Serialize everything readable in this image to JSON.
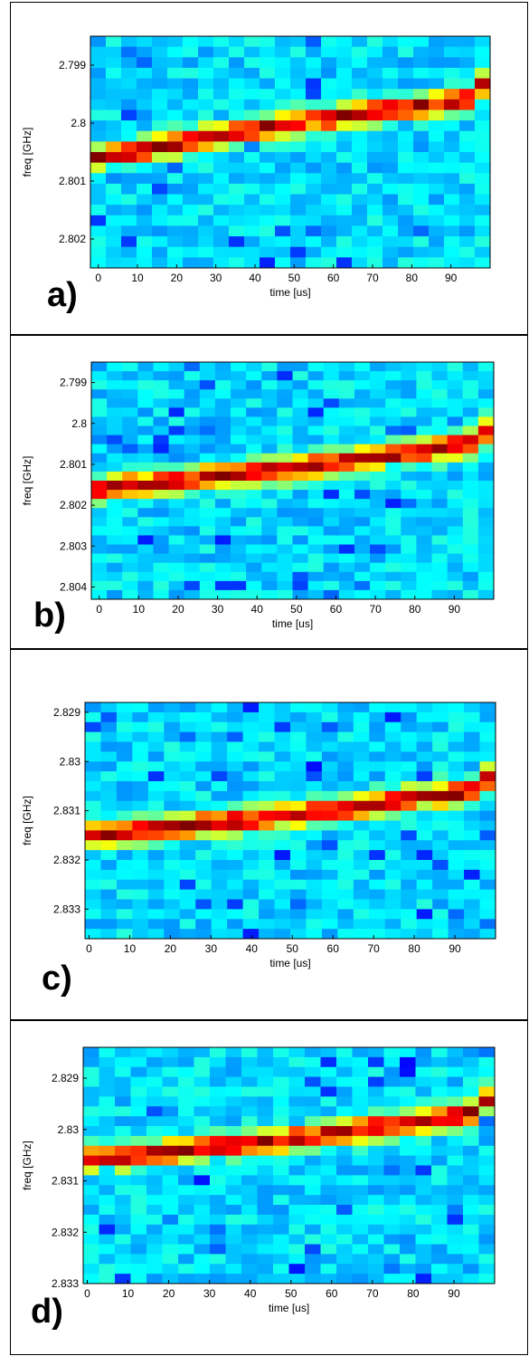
{
  "chart_data": [
    {
      "type": "heatmap",
      "panel_label": "a)",
      "xlabel": "time [us]",
      "ylabel": "freq [GHz]",
      "xlim": [
        -2,
        100
      ],
      "ylim": [
        2.8025,
        2.7985
      ],
      "x_ticks": [
        0,
        10,
        20,
        30,
        40,
        50,
        60,
        70,
        80,
        90
      ],
      "x_tick_labels": [
        "0",
        "10",
        "20",
        "30",
        "40",
        "50",
        "60",
        "70",
        "80",
        "90"
      ],
      "y_ticks": [
        2.799,
        2.8,
        2.801,
        2.802
      ],
      "y_tick_labels": [
        "2.799",
        "2.8",
        "2.801",
        "2.802"
      ],
      "grid": false,
      "resonance_freq": {
        "time_us": [
          0,
          50,
          94,
          100
        ],
        "freq_ghz": [
          2.8006,
          2.8,
          2.7996,
          2.7992
        ]
      }
    },
    {
      "type": "heatmap",
      "panel_label": "b)",
      "xlabel": "time [us]",
      "ylabel": "freq [GHz]",
      "xlim": [
        -2,
        100
      ],
      "ylim": [
        2.8043,
        2.7985
      ],
      "x_ticks": [
        0,
        10,
        20,
        30,
        40,
        50,
        60,
        70,
        80,
        90
      ],
      "x_tick_labels": [
        "0",
        "10",
        "20",
        "30",
        "40",
        "50",
        "60",
        "70",
        "80",
        "90"
      ],
      "y_ticks": [
        2.799,
        2.8,
        2.801,
        2.802,
        2.803,
        2.804
      ],
      "y_tick_labels": [
        "2.799",
        "2.8",
        "2.801",
        "2.802",
        "2.803",
        "2.804"
      ],
      "grid": false,
      "resonance_freq": {
        "time_us": [
          0,
          50,
          94,
          100
        ],
        "freq_ghz": [
          2.8016,
          2.8011,
          2.8005,
          2.8001
        ]
      }
    },
    {
      "type": "heatmap",
      "panel_label": "c)",
      "xlabel": "time [us]",
      "ylabel": "freq [GHz]",
      "xlim": [
        -1,
        100
      ],
      "ylim": [
        2.8336,
        2.8288
      ],
      "x_ticks": [
        0,
        10,
        20,
        30,
        40,
        50,
        60,
        70,
        80,
        90
      ],
      "x_tick_labels": [
        "0",
        "10",
        "20",
        "30",
        "40",
        "50",
        "60",
        "70",
        "80",
        "90"
      ],
      "y_ticks": [
        2.829,
        2.83,
        2.831,
        2.832,
        2.833
      ],
      "y_tick_labels": [
        "2.829",
        "2.83",
        "2.831",
        "2.832",
        "2.833"
      ],
      "grid": false,
      "resonance_freq": {
        "time_us": [
          0,
          50,
          94,
          100
        ],
        "freq_ghz": [
          2.8315,
          2.8311,
          2.8306,
          2.8302
        ]
      }
    },
    {
      "type": "heatmap",
      "panel_label": "d)",
      "xlabel": "time [us]",
      "ylabel": "freq [GHz]",
      "xlim": [
        -1,
        100
      ],
      "ylim": [
        2.833,
        2.8284
      ],
      "x_ticks": [
        0,
        10,
        20,
        30,
        40,
        50,
        60,
        70,
        80,
        90
      ],
      "x_tick_labels": [
        "0",
        "10",
        "20",
        "30",
        "40",
        "50",
        "60",
        "70",
        "80",
        "90"
      ],
      "y_ticks": [
        2.829,
        2.83,
        2.831,
        2.832,
        2.833
      ],
      "y_tick_labels": [
        "2.829",
        "2.83",
        "2.831",
        "2.832",
        "2.833"
      ],
      "grid": false,
      "resonance_freq": {
        "time_us": [
          0,
          50,
          94,
          100
        ],
        "freq_ghz": [
          2.8306,
          2.8302,
          2.8297,
          2.8293
        ]
      }
    }
  ]
}
